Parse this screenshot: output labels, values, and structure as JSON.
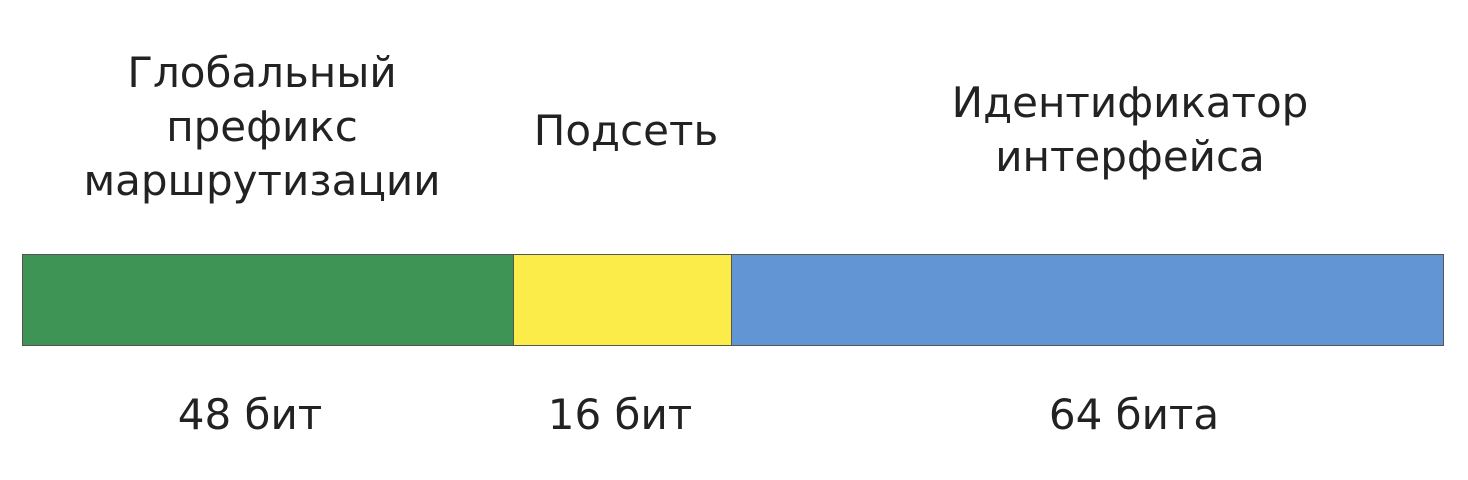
{
  "segments": [
    {
      "title": "Глобальный\nпрефикс\nмаршрутизации",
      "bits_label": "48 бит",
      "bits": 48,
      "color": "#3E9455"
    },
    {
      "title": "Подсеть",
      "bits_label": "16 бит",
      "bits": 16,
      "color": "#FBEC4A"
    },
    {
      "title": "Идентификатор\nинтерфейса",
      "bits_label": "64 бита",
      "bits": 64,
      "color": "#6295D3"
    }
  ]
}
